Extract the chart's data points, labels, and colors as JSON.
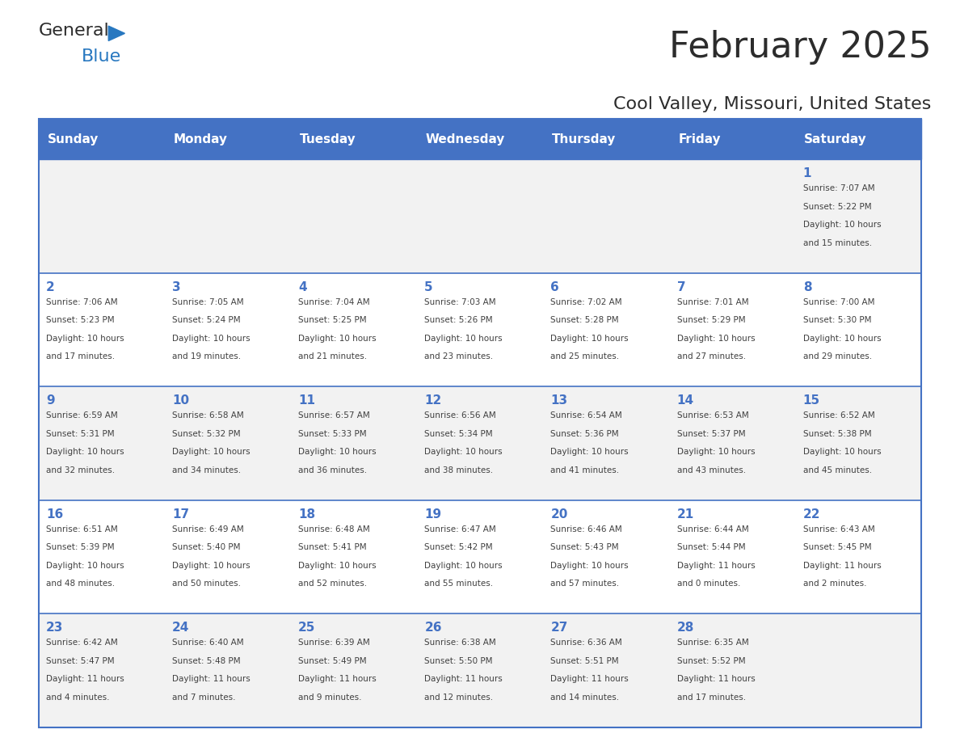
{
  "title": "February 2025",
  "subtitle": "Cool Valley, Missouri, United States",
  "header_color": "#4472C4",
  "header_text_color": "#FFFFFF",
  "day_names": [
    "Sunday",
    "Monday",
    "Tuesday",
    "Wednesday",
    "Thursday",
    "Friday",
    "Saturday"
  ],
  "background_color": "#FFFFFF",
  "cell_bg_color": "#F2F2F2",
  "cell_alt_bg_color": "#FFFFFF",
  "border_color": "#4472C4",
  "day_number_color": "#4472C4",
  "text_color": "#404040",
  "calendar": [
    [
      null,
      null,
      null,
      null,
      null,
      null,
      {
        "day": 1,
        "sunrise": "7:07 AM",
        "sunset": "5:22 PM",
        "daylight": "10 hours\nand 15 minutes."
      }
    ],
    [
      {
        "day": 2,
        "sunrise": "7:06 AM",
        "sunset": "5:23 PM",
        "daylight": "10 hours\nand 17 minutes."
      },
      {
        "day": 3,
        "sunrise": "7:05 AM",
        "sunset": "5:24 PM",
        "daylight": "10 hours\nand 19 minutes."
      },
      {
        "day": 4,
        "sunrise": "7:04 AM",
        "sunset": "5:25 PM",
        "daylight": "10 hours\nand 21 minutes."
      },
      {
        "day": 5,
        "sunrise": "7:03 AM",
        "sunset": "5:26 PM",
        "daylight": "10 hours\nand 23 minutes."
      },
      {
        "day": 6,
        "sunrise": "7:02 AM",
        "sunset": "5:28 PM",
        "daylight": "10 hours\nand 25 minutes."
      },
      {
        "day": 7,
        "sunrise": "7:01 AM",
        "sunset": "5:29 PM",
        "daylight": "10 hours\nand 27 minutes."
      },
      {
        "day": 8,
        "sunrise": "7:00 AM",
        "sunset": "5:30 PM",
        "daylight": "10 hours\nand 29 minutes."
      }
    ],
    [
      {
        "day": 9,
        "sunrise": "6:59 AM",
        "sunset": "5:31 PM",
        "daylight": "10 hours\nand 32 minutes."
      },
      {
        "day": 10,
        "sunrise": "6:58 AM",
        "sunset": "5:32 PM",
        "daylight": "10 hours\nand 34 minutes."
      },
      {
        "day": 11,
        "sunrise": "6:57 AM",
        "sunset": "5:33 PM",
        "daylight": "10 hours\nand 36 minutes."
      },
      {
        "day": 12,
        "sunrise": "6:56 AM",
        "sunset": "5:34 PM",
        "daylight": "10 hours\nand 38 minutes."
      },
      {
        "day": 13,
        "sunrise": "6:54 AM",
        "sunset": "5:36 PM",
        "daylight": "10 hours\nand 41 minutes."
      },
      {
        "day": 14,
        "sunrise": "6:53 AM",
        "sunset": "5:37 PM",
        "daylight": "10 hours\nand 43 minutes."
      },
      {
        "day": 15,
        "sunrise": "6:52 AM",
        "sunset": "5:38 PM",
        "daylight": "10 hours\nand 45 minutes."
      }
    ],
    [
      {
        "day": 16,
        "sunrise": "6:51 AM",
        "sunset": "5:39 PM",
        "daylight": "10 hours\nand 48 minutes."
      },
      {
        "day": 17,
        "sunrise": "6:49 AM",
        "sunset": "5:40 PM",
        "daylight": "10 hours\nand 50 minutes."
      },
      {
        "day": 18,
        "sunrise": "6:48 AM",
        "sunset": "5:41 PM",
        "daylight": "10 hours\nand 52 minutes."
      },
      {
        "day": 19,
        "sunrise": "6:47 AM",
        "sunset": "5:42 PM",
        "daylight": "10 hours\nand 55 minutes."
      },
      {
        "day": 20,
        "sunrise": "6:46 AM",
        "sunset": "5:43 PM",
        "daylight": "10 hours\nand 57 minutes."
      },
      {
        "day": 21,
        "sunrise": "6:44 AM",
        "sunset": "5:44 PM",
        "daylight": "11 hours\nand 0 minutes."
      },
      {
        "day": 22,
        "sunrise": "6:43 AM",
        "sunset": "5:45 PM",
        "daylight": "11 hours\nand 2 minutes."
      }
    ],
    [
      {
        "day": 23,
        "sunrise": "6:42 AM",
        "sunset": "5:47 PM",
        "daylight": "11 hours\nand 4 minutes."
      },
      {
        "day": 24,
        "sunrise": "6:40 AM",
        "sunset": "5:48 PM",
        "daylight": "11 hours\nand 7 minutes."
      },
      {
        "day": 25,
        "sunrise": "6:39 AM",
        "sunset": "5:49 PM",
        "daylight": "11 hours\nand 9 minutes."
      },
      {
        "day": 26,
        "sunrise": "6:38 AM",
        "sunset": "5:50 PM",
        "daylight": "11 hours\nand 12 minutes."
      },
      {
        "day": 27,
        "sunrise": "6:36 AM",
        "sunset": "5:51 PM",
        "daylight": "11 hours\nand 14 minutes."
      },
      {
        "day": 28,
        "sunrise": "6:35 AM",
        "sunset": "5:52 PM",
        "daylight": "11 hours\nand 17 minutes."
      },
      null
    ]
  ]
}
